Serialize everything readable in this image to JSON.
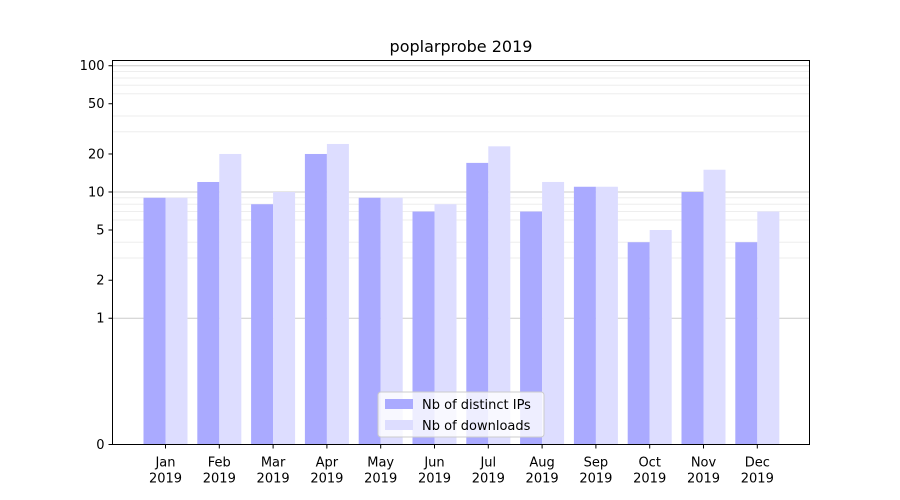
{
  "chart_data": {
    "type": "bar",
    "title": "poplarprobe 2019",
    "xlabel": "",
    "ylabel": "",
    "yscale": "symlog",
    "ylim": [
      0,
      110
    ],
    "yticks": [
      0,
      1,
      2,
      5,
      10,
      20,
      50,
      100
    ],
    "grid": "y",
    "legend_position": "bottom-center",
    "categories": [
      {
        "month": "Jan",
        "year": "2019"
      },
      {
        "month": "Feb",
        "year": "2019"
      },
      {
        "month": "Mar",
        "year": "2019"
      },
      {
        "month": "Apr",
        "year": "2019"
      },
      {
        "month": "May",
        "year": "2019"
      },
      {
        "month": "Jun",
        "year": "2019"
      },
      {
        "month": "Jul",
        "year": "2019"
      },
      {
        "month": "Aug",
        "year": "2019"
      },
      {
        "month": "Sep",
        "year": "2019"
      },
      {
        "month": "Oct",
        "year": "2019"
      },
      {
        "month": "Nov",
        "year": "2019"
      },
      {
        "month": "Dec",
        "year": "2019"
      }
    ],
    "series": [
      {
        "name": "Nb of distinct IPs",
        "color": "#aaaaff",
        "values": [
          9,
          12,
          8,
          20,
          9,
          7,
          17,
          7,
          11,
          4,
          10,
          4
        ]
      },
      {
        "name": "Nb of downloads",
        "color": "#ddddff",
        "values": [
          9,
          20,
          10,
          24,
          9,
          8,
          23,
          12,
          11,
          5,
          15,
          7
        ]
      }
    ]
  }
}
